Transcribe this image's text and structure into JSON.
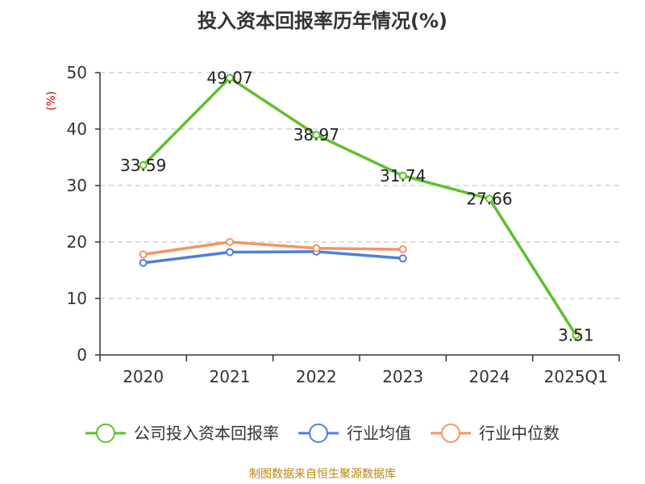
{
  "chart_data": {
    "type": "line",
    "title": "投入资本回报率历年情况(%)",
    "ylabel": "(%)",
    "xlabel": "",
    "categories": [
      "2020",
      "2021",
      "2022",
      "2023",
      "2024",
      "2025Q1"
    ],
    "ylim": [
      0,
      50
    ],
    "yticks": [
      0,
      10,
      20,
      30,
      40,
      50
    ],
    "grid": true,
    "legend_position": "bottom",
    "series": [
      {
        "name": "公司投入资本回报率",
        "color": "#5cc12b",
        "values": [
          33.59,
          49.07,
          38.97,
          31.74,
          27.66,
          3.51
        ],
        "labels": [
          "33.59",
          "49.07",
          "38.97",
          "31.74",
          "27.66",
          "3.51"
        ],
        "show_labels": true
      },
      {
        "name": "行业均值",
        "color": "#4f7fdc",
        "values": [
          16.3,
          18.2,
          18.3,
          17.1,
          null,
          null
        ],
        "show_labels": false
      },
      {
        "name": "行业中位数",
        "color": "#f59462",
        "values": [
          17.8,
          20.0,
          18.9,
          18.7,
          null,
          null
        ],
        "show_labels": false
      }
    ],
    "source": "制图数据来自恒生聚源数据库"
  }
}
